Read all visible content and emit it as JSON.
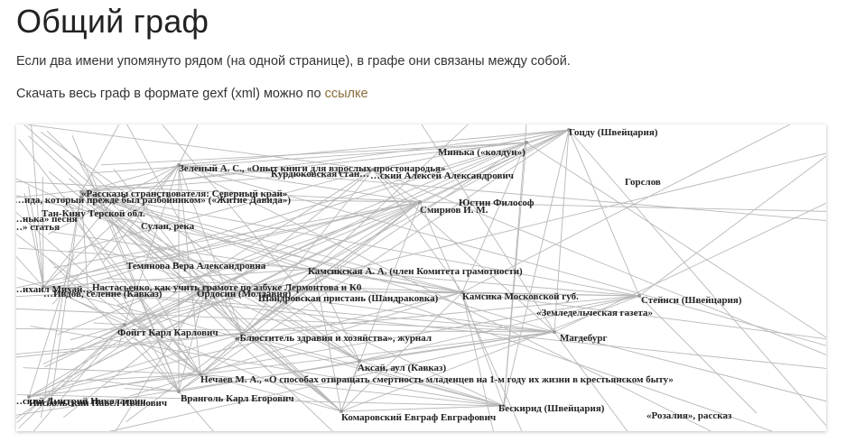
{
  "page": {
    "title": "Общий граф",
    "description": "Если два имени упомянуто рядом (на одной странице), в графе они связаны между собой.",
    "download_prefix": "Скачать весь граф в формате gexf (xml) можно по ",
    "download_link": "ссылке"
  },
  "graph": {
    "node_labels": [
      "Гоцду (Швейцария)",
      "Минька («колдун»)",
      "Зеленый А. С., «Опыт книги для взрослых простонародья»",
      "Курдюковская стан…",
      "…ский Алексей Александрович",
      "Горслов",
      "«Рассказы странствователя: Северный край»",
      "…ида, который прежде был разбойником» («Житие Давида»)",
      "Юстин Философ",
      "Смирнов И. М.",
      "Тан-Кину Терской обл.",
      "…нька» песня",
      "…» статья",
      "Сулан, река",
      "Темянова Вера Александровна",
      "Камсикская А. А. (член Комитета грамотности)",
      "…ихаил Михай…",
      "Настасьенко, как учить грамоте по азбуке Лермонтова и К0",
      "…Ивдов, селение (Кавказ)",
      "Ордосин (Молдавия)",
      "Шандровская пристань (Шандраковка)",
      "Камсика Московской губ.",
      "Стейнси (Швейцария)",
      "«Земледельческая газета»",
      "Фойгт Карл Карлович",
      "«Блюститель здравия и хозяйства», журнал",
      "Магдебург",
      "Аксай, аул (Кавказ)",
      "Нечаев М. А., «О способах отвращать смертность младенцев на 1-м году их жизни в крестьянском быту»",
      "Вранголь Карл Егорович",
      "…ский Дмитрий Николаевич",
      "Инсбольский Павел Иванович",
      "Бескирид (Швейцария)",
      "Комаровский Евграф Евграфович",
      "«Розалия», рассказ"
    ]
  }
}
